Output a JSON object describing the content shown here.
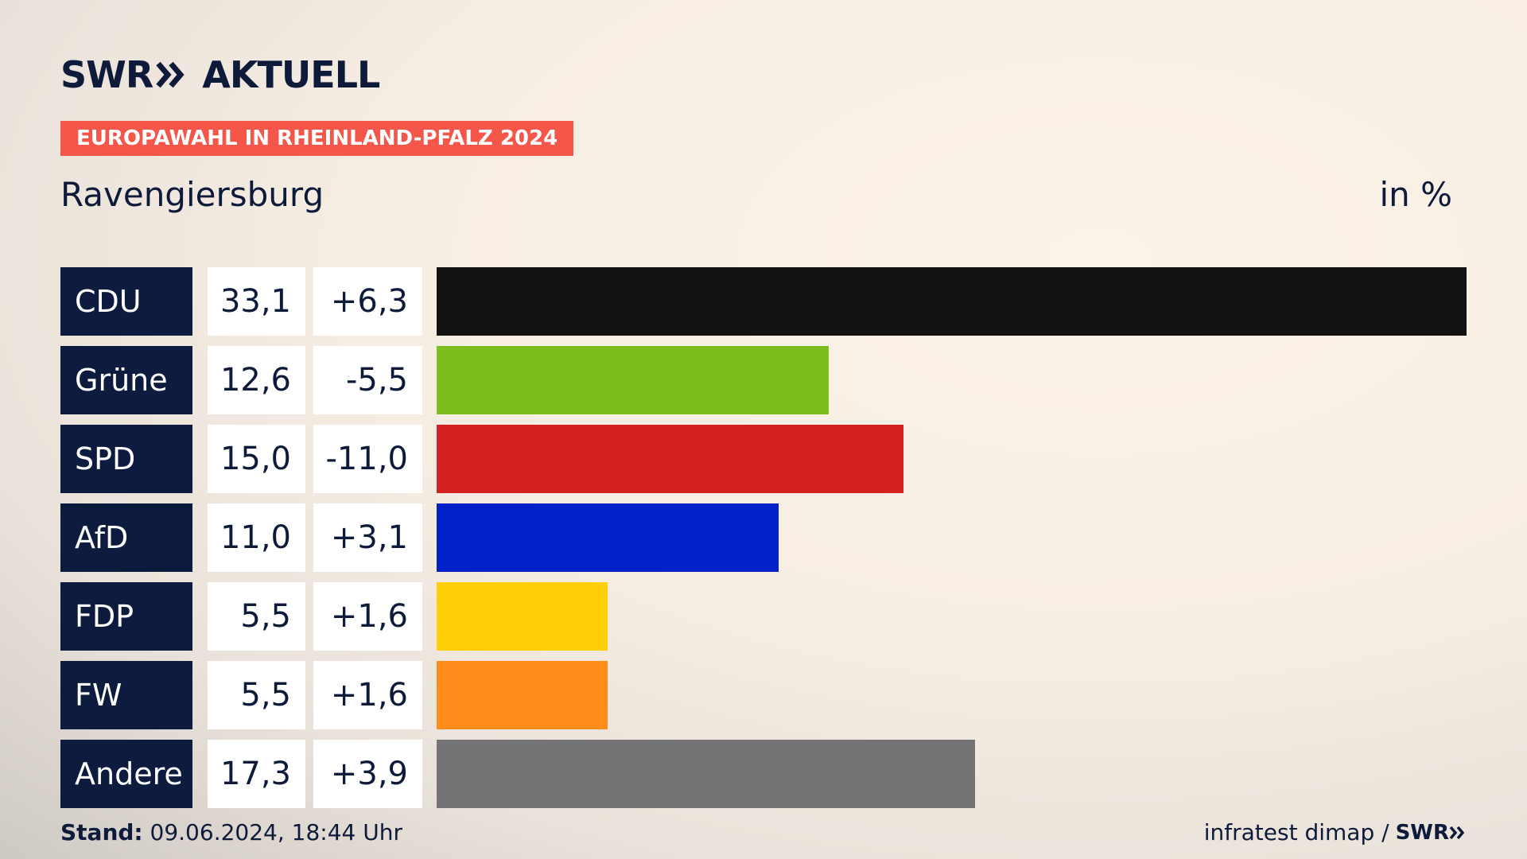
{
  "brand": {
    "name": "SWR",
    "product": "AKTUELL"
  },
  "tag": "EUROPAWAHL IN RHEINLAND-PFALZ 2024",
  "location": "Ravengiersburg",
  "unit": "in %",
  "chart_data": {
    "type": "bar",
    "orientation": "horizontal",
    "categories": [
      "CDU",
      "Grüne",
      "SPD",
      "AfD",
      "FDP",
      "FW",
      "Andere"
    ],
    "values": [
      33.1,
      12.6,
      15.0,
      11.0,
      5.5,
      5.5,
      17.3
    ],
    "value_labels": [
      "33,1",
      "12,6",
      "15,0",
      "11,0",
      "5,5",
      "5,5",
      "17,3"
    ],
    "change_labels": [
      "+6,3",
      "-5,5",
      "-11,0",
      "+3,1",
      "+1,6",
      "+1,6",
      "+3,9"
    ],
    "colors": [
      "#121212",
      "#7bbe1e",
      "#d52020",
      "#0022c8",
      "#ffcf0a",
      "#ff8c18",
      "#747476"
    ],
    "xlim": [
      0,
      33.1
    ],
    "grid": false,
    "legend": "none"
  },
  "footer": {
    "stand_label": "Stand:",
    "stand_value": "09.06.2024, 18:44 Uhr",
    "source": "infratest dimap /",
    "source_brand": "SWR"
  }
}
